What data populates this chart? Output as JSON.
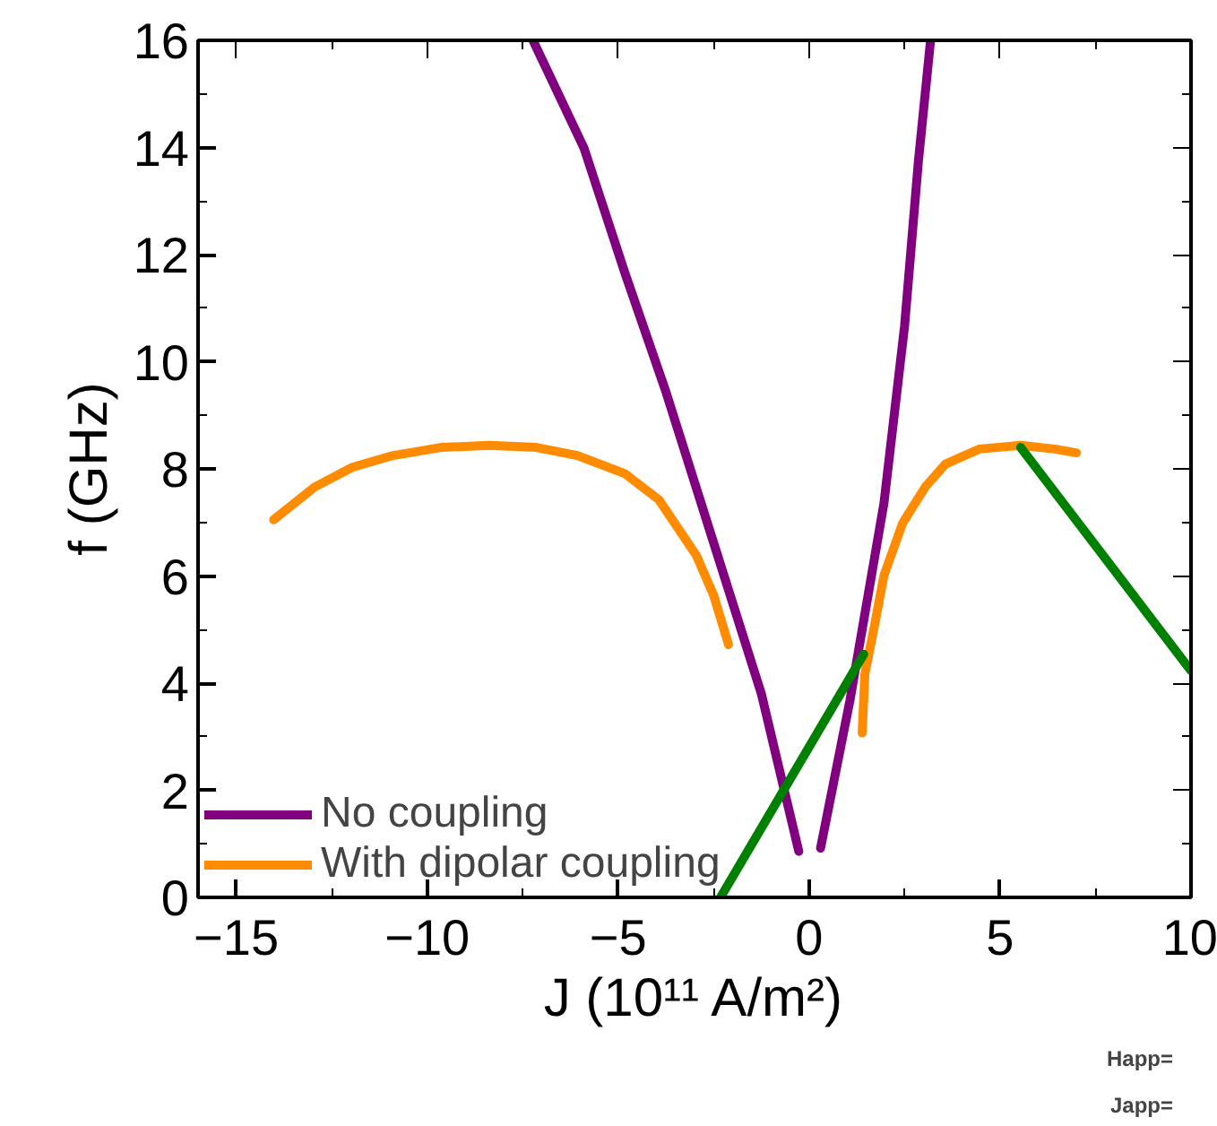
{
  "chart_data": {
    "type": "line",
    "xlabel": "J (10¹¹ A/m²)",
    "ylabel": "f (GHz)",
    "xlim": [
      -16,
      10
    ],
    "ylim": [
      0,
      16
    ],
    "xticks": [
      -15,
      -10,
      -5,
      0,
      5,
      10
    ],
    "yticks": [
      0,
      2,
      4,
      6,
      8,
      10,
      12,
      14,
      16
    ],
    "series": [
      {
        "name": "No coupling",
        "color": "#800080",
        "x": [
          -7.23,
          -5.89,
          -4.82,
          -3.75,
          -2.5,
          -1.25,
          -0.27,
          null,
          0.3,
          1.07,
          1.96,
          2.5,
          2.86,
          3.18
        ],
        "values": [
          16,
          13.98,
          11.65,
          9.44,
          6.62,
          3.8,
          0.86,
          null,
          0.92,
          3.68,
          7.36,
          10.67,
          13.73,
          16
        ]
      },
      {
        "name": "With dipolar coupling",
        "color": "#ff8c00",
        "x": [
          -14.02,
          -12.95,
          -11.96,
          -10.89,
          -9.64,
          -8.39,
          -7.14,
          -6.07,
          -4.82,
          -3.93,
          -2.95,
          -2.5,
          -2.11,
          null,
          1.39,
          1.46,
          1.7,
          1.96,
          2.45,
          3.04,
          3.57,
          4.46,
          5.54,
          6.43,
          7.0
        ],
        "values": [
          7.05,
          7.66,
          8.03,
          8.25,
          8.4,
          8.44,
          8.4,
          8.25,
          7.91,
          7.42,
          6.38,
          5.64,
          4.72,
          null,
          3.07,
          4.17,
          5.03,
          6.01,
          6.99,
          7.66,
          8.09,
          8.37,
          8.44,
          8.37,
          8.3
        ]
      },
      {
        "color": "#008000",
        "x": [
          -2.32,
          1.43,
          null,
          5.54,
          10
        ],
        "values": [
          0,
          4.54,
          null,
          8.4,
          4.23
        ]
      }
    ],
    "legend": "bottom left",
    "grid": false,
    "marker": "none",
    "line_style": "solid",
    "annotations": [
      "Happ=",
      "Japp="
    ]
  }
}
